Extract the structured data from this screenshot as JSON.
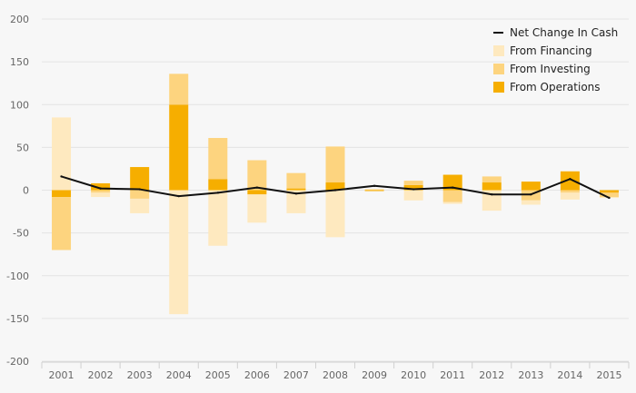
{
  "chart_data": {
    "type": "bar",
    "stacking": "diverging",
    "categories": [
      "2001",
      "2002",
      "2003",
      "2004",
      "2005",
      "2006",
      "2007",
      "2008",
      "2009",
      "2010",
      "2011",
      "2012",
      "2013",
      "2014",
      "2015"
    ],
    "series": [
      {
        "name": "From Operations",
        "kind": "bar",
        "color": "#f6ae00",
        "values": [
          -8,
          8,
          27,
          100,
          13,
          -5,
          2,
          9,
          -1,
          6,
          18,
          9,
          10,
          22,
          -3
        ]
      },
      {
        "name": "From Investing",
        "kind": "bar",
        "color": "#fdd47f",
        "values": [
          -62,
          -3,
          -10,
          36,
          48,
          35,
          18,
          42,
          1,
          5,
          -14,
          7,
          -12,
          -3,
          -5
        ]
      },
      {
        "name": "From Financing",
        "kind": "bar",
        "color": "#fee9bf",
        "values": [
          85,
          -5,
          -17,
          -145,
          -65,
          -33,
          -27,
          -55,
          0,
          -12,
          -2,
          -24,
          -5,
          -8,
          -1
        ]
      },
      {
        "name": "Net Change In Cash",
        "kind": "line",
        "color": "#111111",
        "values": [
          16,
          2,
          1,
          -7,
          -3,
          3,
          -4,
          0,
          5,
          1,
          3,
          -5,
          -5,
          13,
          -9
        ]
      }
    ],
    "ylim": [
      -200,
      200
    ],
    "yticks": [
      200,
      150,
      100,
      50,
      0,
      -50,
      -100,
      -150,
      -200
    ],
    "ytick_labels": [
      "200",
      "150",
      "100",
      "50",
      "0",
      "-50",
      "-100",
      "-150",
      "-200"
    ],
    "legend_order": [
      "Net Change In Cash",
      "From Financing",
      "From Investing",
      "From Operations"
    ],
    "legend_position": "top-right",
    "grid": "horizontal",
    "title": "",
    "xlabel": "",
    "ylabel": ""
  }
}
